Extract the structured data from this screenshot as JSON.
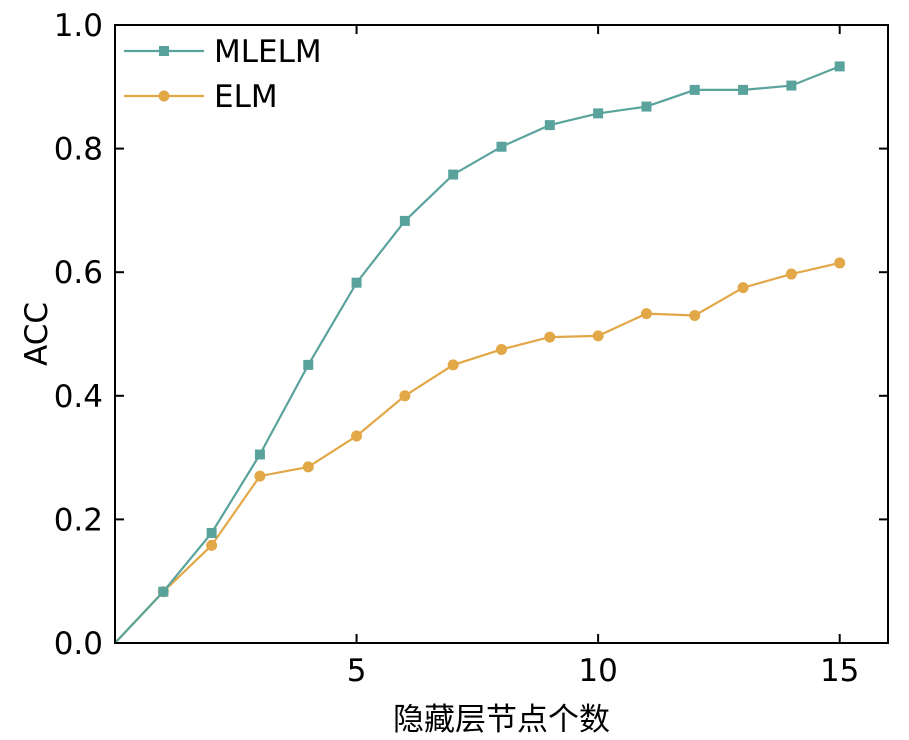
{
  "chart_data": {
    "type": "line",
    "title": "",
    "xlabel": "隐藏层节点个数",
    "ylabel": "ACC",
    "xlim": [
      0,
      16
    ],
    "ylim": [
      0,
      1.0
    ],
    "xticks": [
      5,
      10,
      15
    ],
    "xtick_labels": [
      "5",
      "10",
      "15"
    ],
    "yticks": [
      0.0,
      0.2,
      0.4,
      0.6,
      0.8,
      1.0
    ],
    "ytick_labels": [
      "0.0",
      "0.2",
      "0.4",
      "0.6",
      "0.8",
      "1.0"
    ],
    "grid": false,
    "legend_position": "top-left",
    "x": [
      0,
      1,
      2,
      3,
      4,
      5,
      6,
      7,
      8,
      9,
      10,
      11,
      12,
      13,
      14,
      15
    ],
    "series": [
      {
        "name": "MLELM",
        "color": "#5aa39c",
        "marker": "square",
        "values": [
          0.0,
          0.083,
          0.178,
          0.305,
          0.45,
          0.583,
          0.683,
          0.758,
          0.803,
          0.838,
          0.857,
          0.868,
          0.895,
          0.895,
          0.902,
          0.933
        ]
      },
      {
        "name": "ELM",
        "color": "#e2a847",
        "marker": "circle",
        "values": [
          0.0,
          0.083,
          0.158,
          0.27,
          0.285,
          0.335,
          0.4,
          0.45,
          0.475,
          0.495,
          0.497,
          0.533,
          0.53,
          0.575,
          0.597,
          0.615
        ]
      }
    ]
  }
}
